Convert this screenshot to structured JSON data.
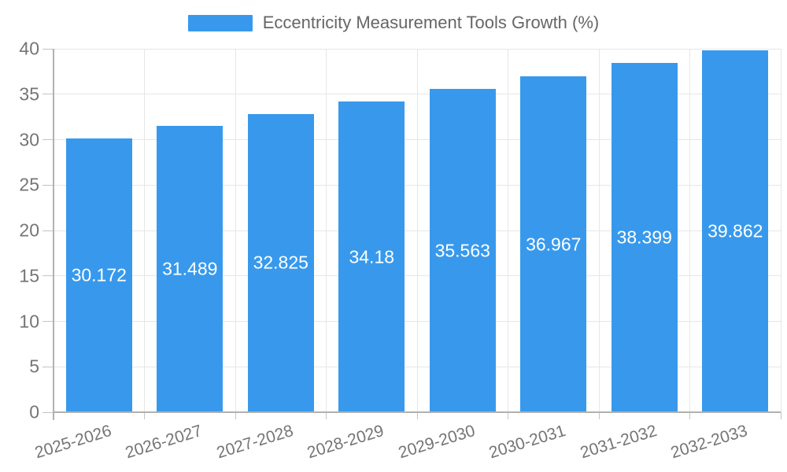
{
  "legend": {
    "label": "Eccentricity Measurement Tools Growth (%)"
  },
  "chart_data": {
    "type": "bar",
    "title": "Eccentricity Measurement Tools Growth (%)",
    "xlabel": "",
    "ylabel": "",
    "categories": [
      "2025-2026",
      "2026-2027",
      "2027-2028",
      "2028-2029",
      "2029-2030",
      "2030-2031",
      "2031-2032",
      "2032-2033"
    ],
    "values": [
      30.172,
      31.489,
      32.825,
      34.18,
      35.563,
      36.967,
      38.399,
      39.862
    ],
    "value_labels": [
      "30.172",
      "31.489",
      "32.825",
      "34.18",
      "35.563",
      "36.967",
      "38.399",
      "39.862"
    ],
    "ylim": [
      0,
      40
    ],
    "yticks": [
      0,
      5,
      10,
      15,
      20,
      25,
      30,
      35,
      40
    ],
    "grid": true,
    "legend_position": "top"
  },
  "colors": {
    "bar": "#3899ec",
    "gridline": "#e6e6e6",
    "axis": "#b1b1b1",
    "tick": "#c4c4c4",
    "axis_label_text": "#757575",
    "legend_text": "#666666",
    "value_label_text": "#ffffff"
  }
}
